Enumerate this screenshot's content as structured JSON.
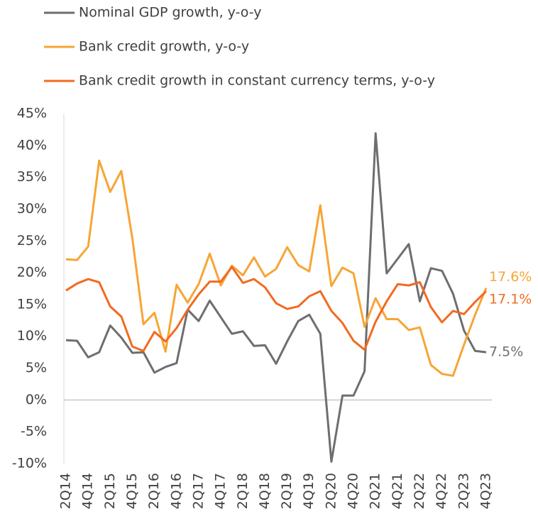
{
  "chart_data": {
    "type": "line",
    "categories": [
      "2Q14",
      null,
      "4Q14",
      null,
      "2Q15",
      null,
      "4Q15",
      null,
      "2Q16",
      null,
      "4Q16",
      null,
      "2Q17",
      null,
      "4Q17",
      null,
      "2Q18",
      null,
      "4Q18",
      null,
      "2Q19",
      null,
      "4Q19",
      null,
      "2Q20",
      null,
      "4Q20",
      null,
      "2Q21",
      null,
      "4Q21",
      null,
      "2Q22",
      null,
      "4Q22",
      null,
      "2Q23",
      null,
      "4Q23"
    ],
    "series": [
      {
        "name": "Nominal GDP growth, y-o-y",
        "color": "#6d6e71",
        "values": [
          9.4,
          9.3,
          6.7,
          7.5,
          11.7,
          9.8,
          7.4,
          7.5,
          4.3,
          5.2,
          5.8,
          14.2,
          12.4,
          15.6,
          13.0,
          10.4,
          10.8,
          8.5,
          8.6,
          5.7,
          9.2,
          12.4,
          13.4,
          10.4,
          -9.7,
          0.7,
          0.7,
          4.5,
          41.9,
          19.9,
          22.2,
          24.5,
          15.5,
          20.7,
          20.3,
          16.7,
          10.9,
          7.7,
          7.5
        ],
        "value_labels": [
          null,
          null,
          null,
          null,
          null,
          null,
          null,
          null,
          null,
          null,
          null,
          null,
          null,
          null,
          null,
          null,
          null,
          null,
          null,
          null,
          null,
          null,
          null,
          null,
          null,
          null,
          null,
          null,
          null,
          null,
          null,
          null,
          null,
          null,
          null,
          null,
          null,
          null,
          "7.5%"
        ]
      },
      {
        "name": "Bank credit growth, y-o-y",
        "color": "#f7a535",
        "values": [
          22.1,
          22.0,
          24.1,
          37.6,
          32.7,
          36.0,
          25.4,
          11.9,
          13.7,
          7.6,
          18.1,
          15.3,
          18.2,
          23.0,
          18.0,
          21.1,
          19.6,
          22.4,
          19.4,
          20.6,
          24.0,
          21.2,
          20.2,
          30.6,
          17.9,
          20.8,
          19.9,
          11.5,
          16.0,
          12.7,
          12.7,
          11.0,
          11.4,
          5.5,
          4.1,
          3.8,
          8.7,
          13.4,
          17.6
        ],
        "value_labels": [
          null,
          null,
          null,
          null,
          null,
          null,
          null,
          null,
          null,
          null,
          null,
          null,
          null,
          null,
          null,
          null,
          null,
          null,
          null,
          null,
          null,
          null,
          null,
          null,
          null,
          null,
          null,
          null,
          null,
          null,
          null,
          null,
          null,
          null,
          null,
          null,
          null,
          null,
          "17.6%"
        ]
      },
      {
        "name": "Bank credit growth in constant currency terms, y-o-y",
        "color": "#f26a21",
        "values": [
          17.2,
          18.3,
          19.0,
          18.5,
          14.7,
          13.1,
          8.4,
          7.7,
          10.7,
          9.2,
          11.3,
          14.2,
          16.6,
          18.6,
          18.6,
          20.9,
          18.4,
          19.0,
          17.7,
          15.2,
          14.3,
          14.7,
          16.3,
          17.1,
          14.0,
          12.1,
          9.3,
          7.9,
          12.3,
          15.5,
          18.2,
          18.0,
          18.5,
          14.6,
          12.2,
          14.0,
          13.5,
          15.4,
          17.1
        ],
        "value_labels": [
          null,
          null,
          null,
          null,
          null,
          null,
          null,
          null,
          null,
          null,
          null,
          null,
          null,
          null,
          null,
          null,
          null,
          null,
          null,
          null,
          null,
          null,
          null,
          null,
          null,
          null,
          null,
          null,
          null,
          null,
          null,
          null,
          null,
          null,
          null,
          null,
          null,
          null,
          "17.1%"
        ]
      }
    ],
    "ylim": [
      -10,
      45
    ],
    "yticks": [
      {
        "value": -10,
        "label": "-10%"
      },
      {
        "value": -5,
        "label": "-5%"
      },
      {
        "value": 0,
        "label": "0%"
      },
      {
        "value": 5,
        "label": "5%"
      },
      {
        "value": 10,
        "label": "10%"
      },
      {
        "value": 15,
        "label": "15%"
      },
      {
        "value": 20,
        "label": "20%"
      },
      {
        "value": 25,
        "label": "25%"
      },
      {
        "value": 30,
        "label": "30%"
      },
      {
        "value": 35,
        "label": "35%"
      },
      {
        "value": 40,
        "label": "40%"
      },
      {
        "value": 45,
        "label": "45%"
      }
    ],
    "grid": false,
    "legend": "top"
  }
}
